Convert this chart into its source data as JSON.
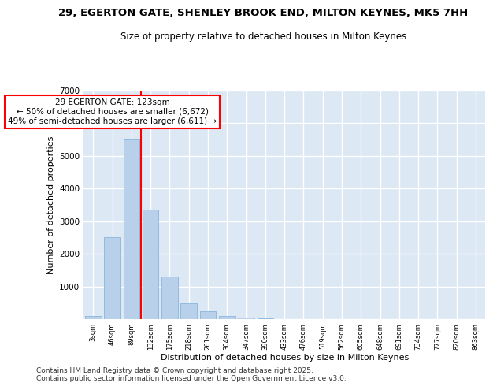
{
  "title1": "29, EGERTON GATE, SHENLEY BROOK END, MILTON KEYNES, MK5 7HH",
  "title2": "Size of property relative to detached houses in Milton Keynes",
  "xlabel": "Distribution of detached houses by size in Milton Keynes",
  "ylabel": "Number of detached properties",
  "categories": [
    "3sqm",
    "46sqm",
    "89sqm",
    "132sqm",
    "175sqm",
    "218sqm",
    "261sqm",
    "304sqm",
    "347sqm",
    "390sqm",
    "433sqm",
    "476sqm",
    "519sqm",
    "562sqm",
    "605sqm",
    "648sqm",
    "691sqm",
    "734sqm",
    "777sqm",
    "820sqm",
    "863sqm"
  ],
  "values": [
    100,
    2500,
    5500,
    3350,
    1300,
    480,
    230,
    100,
    55,
    35,
    0,
    0,
    0,
    0,
    0,
    0,
    0,
    0,
    0,
    0,
    0
  ],
  "bar_color": "#b8d0ea",
  "bar_edgecolor": "#7aaed6",
  "vline_color": "red",
  "annotation_text": "29 EGERTON GATE: 123sqm\n← 50% of detached houses are smaller (6,672)\n49% of semi-detached houses are larger (6,611) →",
  "annotation_box_color": "white",
  "annotation_box_edgecolor": "red",
  "annotation_fontsize": 7.5,
  "ylim": [
    0,
    7000
  ],
  "yticks": [
    0,
    1000,
    2000,
    3000,
    4000,
    5000,
    6000,
    7000
  ],
  "background_color": "#dde8f5",
  "grid_color": "white",
  "title1_fontsize": 9.5,
  "title2_fontsize": 8.5,
  "xlabel_fontsize": 8,
  "ylabel_fontsize": 8,
  "footer_text": "Contains HM Land Registry data © Crown copyright and database right 2025.\nContains public sector information licensed under the Open Government Licence v3.0.",
  "footer_fontsize": 6.5
}
